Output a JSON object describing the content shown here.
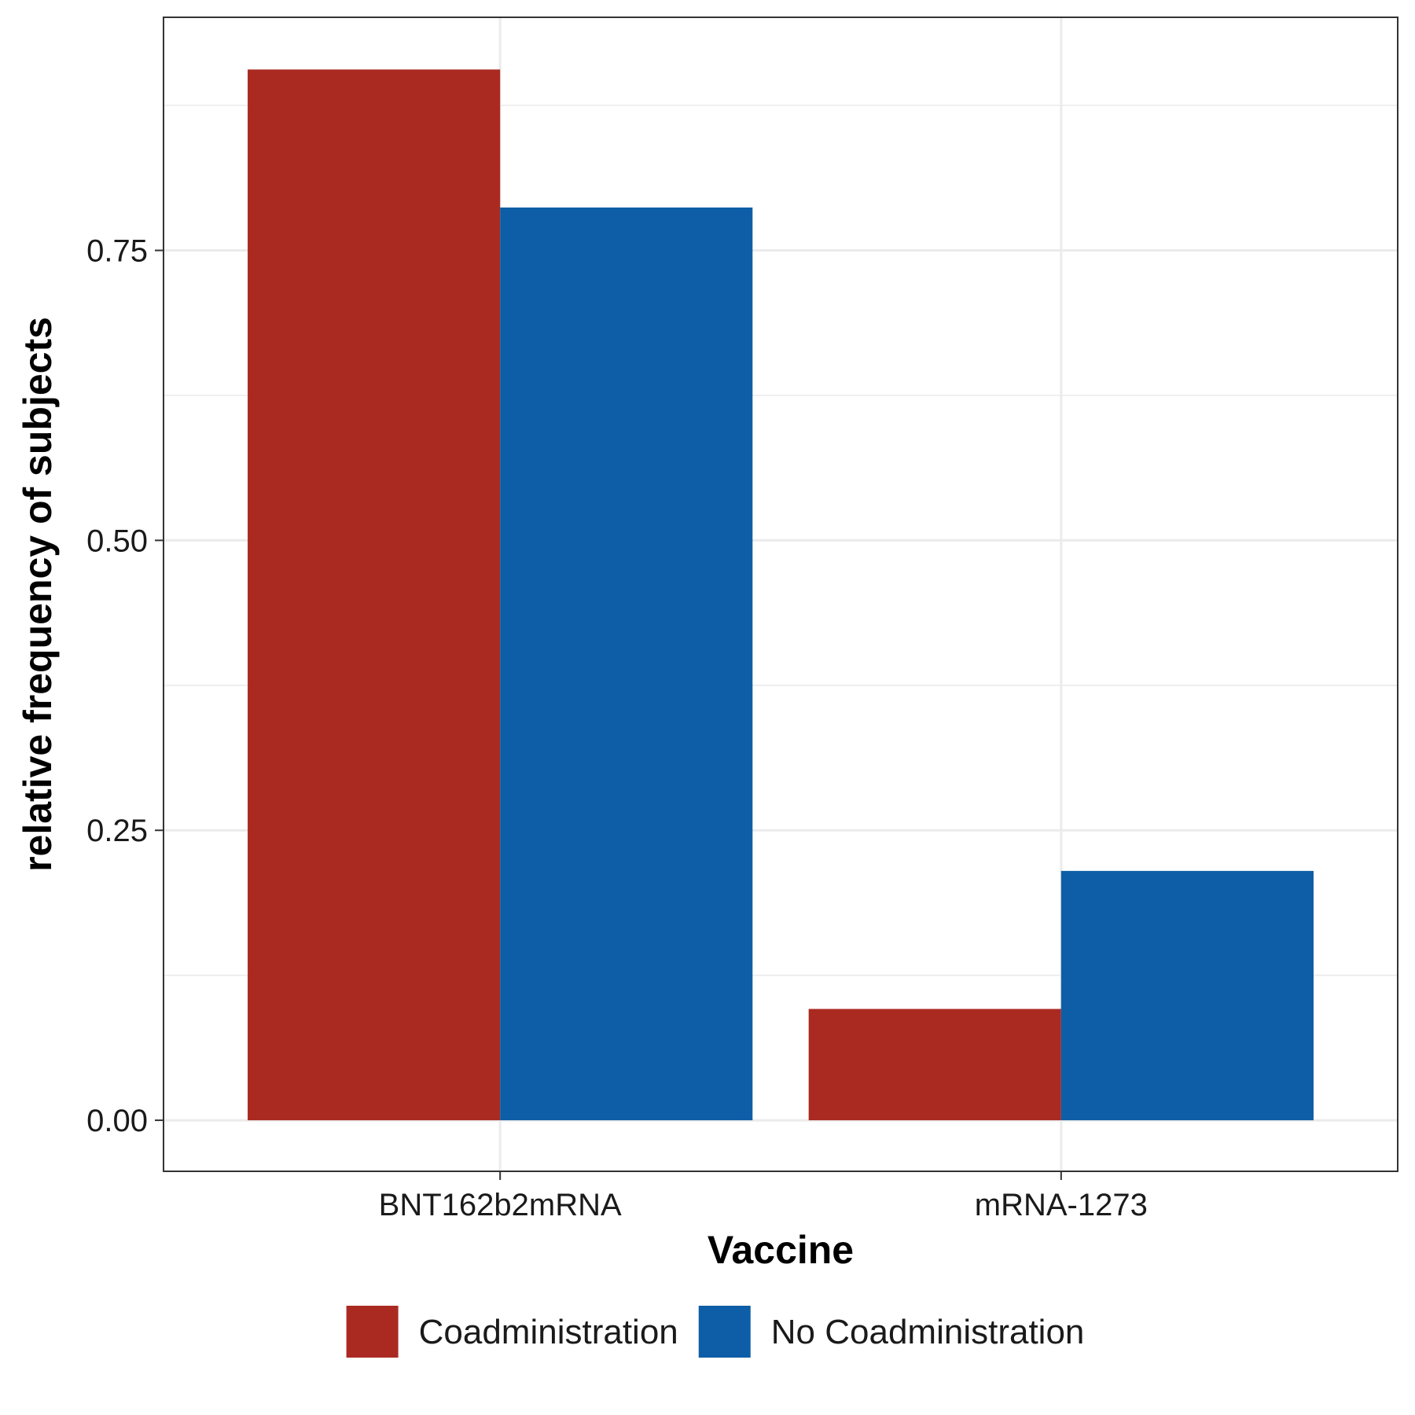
{
  "chart_data": {
    "type": "bar",
    "title": "",
    "xlabel": "Vaccine",
    "ylabel": "relative frequency of subjects",
    "categories": [
      "BNT162b2mRNA",
      "mRNA-1273"
    ],
    "series": [
      {
        "name": "Coadministration",
        "color": "#AA2A22",
        "values": [
          0.906,
          0.096
        ]
      },
      {
        "name": "No Coadministration",
        "color": "#0D5EA6",
        "values": [
          0.787,
          0.215
        ]
      }
    ],
    "ylim": [
      -0.044,
      0.951
    ],
    "yticks": [
      0.0,
      0.25,
      0.5,
      0.75
    ],
    "ytick_labels": [
      "0.00",
      "0.25",
      "0.50",
      "0.75"
    ],
    "grid": true,
    "legend_position": "bottom"
  }
}
